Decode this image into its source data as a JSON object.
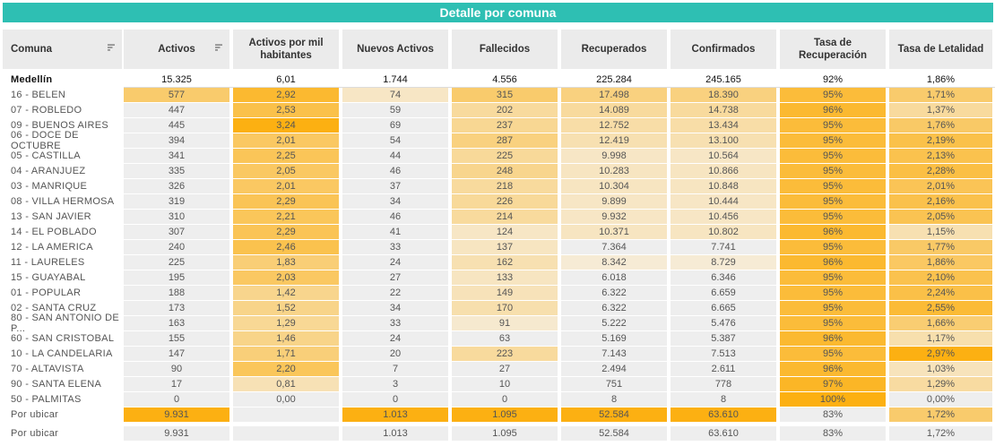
{
  "title": "Detalle por comuna",
  "colors": {
    "title_bg": "#2ebfb3",
    "header_bg": "#ebebeb",
    "neutral": "#eeeeee",
    "scale_low": "#f6ecd9",
    "scale_high": "#fcb012"
  },
  "headers": [
    {
      "label": "Comuna",
      "sortable": true
    },
    {
      "label": "Activos",
      "sortable": true
    },
    {
      "label": "Activos por mil habitantes",
      "sortable": false
    },
    {
      "label": "Nuevos Activos",
      "sortable": false
    },
    {
      "label": "Fallecidos",
      "sortable": false
    },
    {
      "label": "Recuperados",
      "sortable": false
    },
    {
      "label": "Confirmados",
      "sortable": false
    },
    {
      "label": "Tasa de Recuperación",
      "sortable": false
    },
    {
      "label": "Tasa de Letalidad",
      "sortable": false
    }
  ],
  "total": {
    "comuna": "Medellín",
    "values": [
      "15.325",
      "6,01",
      "1.744",
      "4.556",
      "225.284",
      "245.165",
      "92%",
      "1,86%"
    ]
  },
  "rows": [
    {
      "comuna": "16 - BELEN",
      "values": [
        "577",
        "2,92",
        "74",
        "315",
        "17.498",
        "18.390",
        "95%",
        "1,71%"
      ],
      "heat": [
        0.55,
        0.85,
        0.1,
        0.55,
        0.45,
        0.45,
        0.8,
        0.55
      ]
    },
    {
      "comuna": "07 - ROBLEDO",
      "values": [
        "447",
        "2,53",
        "59",
        "202",
        "14.089",
        "14.738",
        "96%",
        "1,37%"
      ],
      "heat": [
        0.0,
        0.72,
        0.0,
        0.3,
        0.3,
        0.3,
        0.85,
        0.3
      ]
    },
    {
      "comuna": "09 - BUENOS AIRES",
      "values": [
        "445",
        "3,24",
        "69",
        "237",
        "12.752",
        "13.434",
        "95%",
        "1,76%"
      ],
      "heat": [
        0.0,
        1.0,
        0.0,
        0.35,
        0.25,
        0.25,
        0.8,
        0.58
      ]
    },
    {
      "comuna": "06 - DOCE DE OCTUBRE",
      "values": [
        "394",
        "2,01",
        "54",
        "287",
        "12.419",
        "13.100",
        "95%",
        "2,19%"
      ],
      "heat": [
        0.0,
        0.6,
        0.0,
        0.45,
        0.2,
        0.2,
        0.8,
        0.72
      ]
    },
    {
      "comuna": "05 - CASTILLA",
      "values": [
        "341",
        "2,25",
        "44",
        "225",
        "9.998",
        "10.564",
        "95%",
        "2,13%"
      ],
      "heat": [
        0.0,
        0.65,
        0.0,
        0.32,
        0.1,
        0.1,
        0.8,
        0.7
      ]
    },
    {
      "comuna": "04 - ARANJUEZ",
      "values": [
        "335",
        "2,05",
        "46",
        "248",
        "10.283",
        "10.866",
        "95%",
        "2,28%"
      ],
      "heat": [
        0.0,
        0.6,
        0.0,
        0.38,
        0.12,
        0.12,
        0.8,
        0.75
      ]
    },
    {
      "comuna": "03 - MANRIQUE",
      "values": [
        "326",
        "2,01",
        "37",
        "218",
        "10.304",
        "10.848",
        "95%",
        "2,01%"
      ],
      "heat": [
        0.0,
        0.6,
        0.0,
        0.3,
        0.12,
        0.12,
        0.8,
        0.66
      ]
    },
    {
      "comuna": "08 - VILLA HERMOSA",
      "values": [
        "319",
        "2,29",
        "34",
        "226",
        "9.899",
        "10.444",
        "95%",
        "2,16%"
      ],
      "heat": [
        0.0,
        0.66,
        0.0,
        0.32,
        0.1,
        0.1,
        0.8,
        0.71
      ]
    },
    {
      "comuna": "13 - SAN JAVIER",
      "values": [
        "310",
        "2,21",
        "46",
        "214",
        "9.932",
        "10.456",
        "95%",
        "2,05%"
      ],
      "heat": [
        0.0,
        0.64,
        0.0,
        0.3,
        0.1,
        0.1,
        0.8,
        0.68
      ]
    },
    {
      "comuna": "14 - EL POBLADO",
      "values": [
        "307",
        "2,29",
        "41",
        "124",
        "10.371",
        "10.802",
        "96%",
        "1,15%"
      ],
      "heat": [
        0.0,
        0.66,
        0.0,
        0.1,
        0.12,
        0.12,
        0.85,
        0.2
      ]
    },
    {
      "comuna": "12 - LA AMERICA",
      "values": [
        "240",
        "2,46",
        "33",
        "137",
        "7.364",
        "7.741",
        "95%",
        "1,77%"
      ],
      "heat": [
        0.0,
        0.7,
        0.0,
        0.12,
        0.0,
        0.0,
        0.8,
        0.58
      ]
    },
    {
      "comuna": "11 - LAURELES",
      "values": [
        "225",
        "1,83",
        "24",
        "162",
        "8.342",
        "8.729",
        "96%",
        "1,86%"
      ],
      "heat": [
        0.0,
        0.5,
        0.0,
        0.2,
        0.02,
        0.02,
        0.85,
        0.6
      ]
    },
    {
      "comuna": "15 - GUAYABAL",
      "values": [
        "195",
        "2,03",
        "27",
        "133",
        "6.018",
        "6.346",
        "95%",
        "2,10%"
      ],
      "heat": [
        0.0,
        0.6,
        0.0,
        0.12,
        0.0,
        0.0,
        0.8,
        0.7
      ]
    },
    {
      "comuna": "01 - POPULAR",
      "values": [
        "188",
        "1,42",
        "22",
        "149",
        "6.322",
        "6.659",
        "95%",
        "2,24%"
      ],
      "heat": [
        0.0,
        0.38,
        0.0,
        0.16,
        0.0,
        0.0,
        0.8,
        0.73
      ]
    },
    {
      "comuna": "02 - SANTA CRUZ",
      "values": [
        "173",
        "1,52",
        "34",
        "170",
        "6.322",
        "6.665",
        "95%",
        "2,55%"
      ],
      "heat": [
        0.0,
        0.4,
        0.0,
        0.22,
        0.0,
        0.0,
        0.8,
        0.82
      ]
    },
    {
      "comuna": "80 - SAN ANTONIO DE P...",
      "values": [
        "163",
        "1,29",
        "33",
        "91",
        "5.222",
        "5.476",
        "95%",
        "1,66%"
      ],
      "heat": [
        0.0,
        0.34,
        0.0,
        0.05,
        0.0,
        0.0,
        0.8,
        0.52
      ]
    },
    {
      "comuna": "60 - SAN CRISTOBAL",
      "values": [
        "155",
        "1,46",
        "24",
        "63",
        "5.169",
        "5.387",
        "96%",
        "1,17%"
      ],
      "heat": [
        0.0,
        0.4,
        0.0,
        0.0,
        0.0,
        0.0,
        0.85,
        0.22
      ]
    },
    {
      "comuna": "10 - LA CANDELARIA",
      "values": [
        "147",
        "1,71",
        "20",
        "223",
        "7.143",
        "7.513",
        "95%",
        "2,97%"
      ],
      "heat": [
        0.0,
        0.48,
        0.0,
        0.3,
        0.0,
        0.0,
        0.8,
        1.0
      ]
    },
    {
      "comuna": "70 - ALTAVISTA",
      "values": [
        "90",
        "2,20",
        "7",
        "27",
        "2.494",
        "2.611",
        "96%",
        "1,03%"
      ],
      "heat": [
        0.0,
        0.64,
        0.0,
        0.0,
        0.0,
        0.0,
        0.85,
        0.15
      ]
    },
    {
      "comuna": "90 - SANTA ELENA",
      "values": [
        "17",
        "0,81",
        "3",
        "10",
        "751",
        "778",
        "97%",
        "1,29%"
      ],
      "heat": [
        0.0,
        0.18,
        0.0,
        0.0,
        0.0,
        0.0,
        0.9,
        0.28
      ]
    },
    {
      "comuna": "50 - PALMITAS",
      "values": [
        "0",
        "0,00",
        "0",
        "0",
        "8",
        "8",
        "100%",
        "0,00%"
      ],
      "heat": [
        0.0,
        0.0,
        0.0,
        0.0,
        0.0,
        0.0,
        1.0,
        0.0
      ]
    },
    {
      "comuna": "Por ubicar",
      "values": [
        "9.931",
        "",
        "1.013",
        "1.095",
        "52.584",
        "63.610",
        "83%",
        "1,72%"
      ],
      "heat": [
        1.0,
        -1,
        1.0,
        1.0,
        1.0,
        1.0,
        -1,
        0.55
      ]
    }
  ],
  "footer": {
    "comuna": "Por ubicar",
    "values": [
      "9.931",
      "",
      "1.013",
      "1.095",
      "52.584",
      "63.610",
      "83%",
      "1,72%"
    ]
  }
}
